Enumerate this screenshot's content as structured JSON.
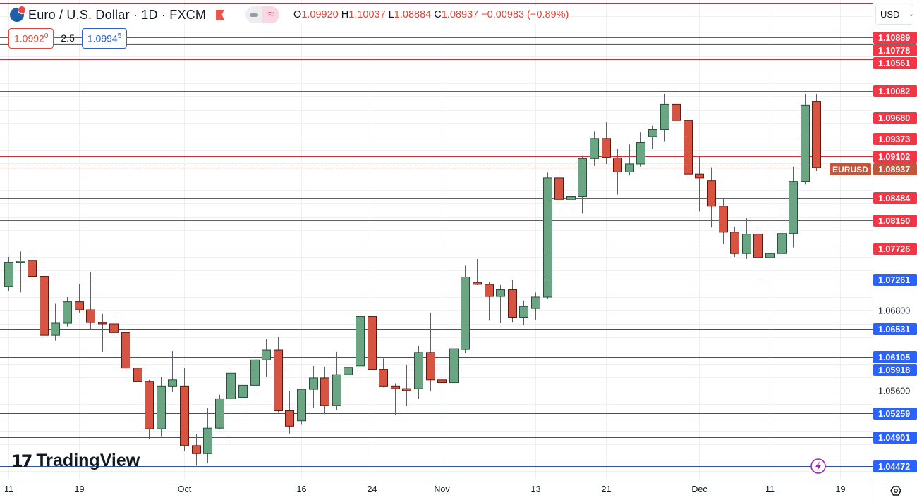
{
  "header": {
    "title": "Euro / U.S. Dollar · 1D · FXCM",
    "ohlc": {
      "o_label": "O",
      "o": "1.09920",
      "h_label": "H",
      "h": "1.10037",
      "l_label": "L",
      "l": "1.08884",
      "c_label": "C",
      "c": "1.08937",
      "change": "−0.00983 (−0.89%)"
    },
    "sell_price_main": "1.0992",
    "sell_price_sup": "0",
    "spread": "2.5",
    "buy_price_main": "1.0994",
    "buy_price_sup": "5"
  },
  "currency_select": "USD",
  "logo_text": "TradingView",
  "symbol_tag": "EURUSD",
  "colors": {
    "up": "#6ba583",
    "up_border": "#225437",
    "down": "#d75442",
    "down_border": "#5b1a13",
    "resistance": "#c8333b",
    "support": "#2b5797",
    "resistance_label": "#f23645",
    "support_label": "#2962ff",
    "last_price": "#c0573c",
    "alert_icon": "#9c27b0"
  },
  "icons": {
    "symbol": "euro-us-flag-icon",
    "flag": "flag-icon",
    "alert": "lightning-icon",
    "settings": "gear-icon"
  },
  "chart_data": {
    "type": "candlestick",
    "title": "Euro / U.S. Dollar · 1D · FXCM",
    "ylim": [
      1.0435,
      1.1145
    ],
    "grid": true,
    "y_ticks": [
      "1.04400",
      "1.04800",
      "1.05200",
      "1.05600",
      "1.06000",
      "1.06400",
      "1.06800",
      "1.07200",
      "1.07600",
      "1.08000",
      "1.08400",
      "1.08800",
      "1.09200",
      "1.09500",
      "1.10000",
      "1.10400",
      "1.10800"
    ],
    "x_ticks": [
      {
        "label": "11",
        "date": "Sep 11"
      },
      {
        "label": "19",
        "date": "Sep 19"
      },
      {
        "label": "Oct",
        "date": "Oct 2"
      },
      {
        "label": "16",
        "date": "Oct 16"
      },
      {
        "label": "24",
        "date": "Oct 24"
      },
      {
        "label": "Nov",
        "date": "Nov 1"
      },
      {
        "label": "13",
        "date": "Nov 13"
      },
      {
        "label": "21",
        "date": "Nov 21"
      },
      {
        "label": "Dec",
        "date": "Dec 1"
      },
      {
        "label": "11",
        "date": "Dec 11"
      },
      {
        "label": "19",
        "date": "Dec 19"
      }
    ],
    "levels": [
      {
        "price": 1.114,
        "label": "",
        "kind": "resistance"
      },
      {
        "price": 1.10889,
        "label": "1.10889",
        "kind": "resistance"
      },
      {
        "price": 1.10778,
        "label": "1.10778",
        "kind": "resistance"
      },
      {
        "price": 1.10561,
        "label": "1.10561",
        "kind": "resistance"
      },
      {
        "price": 1.10082,
        "label": "1.10082",
        "kind": "resistance"
      },
      {
        "price": 1.0968,
        "label": "1.09680",
        "kind": "resistance"
      },
      {
        "price": 1.09373,
        "label": "1.09373",
        "kind": "resistance"
      },
      {
        "price": 1.09102,
        "label": "1.09102",
        "kind": "resistance"
      },
      {
        "price": 1.08484,
        "label": "1.08484",
        "kind": "resistance"
      },
      {
        "price": 1.0815,
        "label": "1.08150",
        "kind": "resistance"
      },
      {
        "price": 1.07726,
        "label": "1.07726",
        "kind": "resistance"
      },
      {
        "price": 1.07261,
        "label": "1.07261",
        "kind": "support"
      },
      {
        "price": 1.06531,
        "label": "1.06531",
        "kind": "support"
      },
      {
        "price": 1.06105,
        "label": "1.06105",
        "kind": "support"
      },
      {
        "price": 1.05918,
        "label": "1.05918",
        "kind": "support"
      },
      {
        "price": 1.05259,
        "label": "1.05259",
        "kind": "support"
      },
      {
        "price": 1.04901,
        "label": "1.04901",
        "kind": "support"
      },
      {
        "price": 1.04472,
        "label": "1.04472",
        "kind": "support"
      }
    ],
    "last_price": {
      "price": 1.08937,
      "label": "1.08937"
    },
    "candles": [
      {
        "date": "Sep 11",
        "o": 1.0716,
        "h": 1.076,
        "l": 1.0709,
        "c": 1.0752
      },
      {
        "date": "Sep 12",
        "o": 1.0752,
        "h": 1.0768,
        "l": 1.0707,
        "c": 1.0754
      },
      {
        "date": "Sep 13",
        "o": 1.0755,
        "h": 1.0766,
        "l": 1.0713,
        "c": 1.0731
      },
      {
        "date": "Sep 14",
        "o": 1.0731,
        "h": 1.0754,
        "l": 1.0634,
        "c": 1.0643
      },
      {
        "date": "Sep 15",
        "o": 1.0643,
        "h": 1.069,
        "l": 1.0635,
        "c": 1.0661
      },
      {
        "date": "Sep 18",
        "o": 1.0661,
        "h": 1.07,
        "l": 1.0656,
        "c": 1.0693
      },
      {
        "date": "Sep 19",
        "o": 1.0693,
        "h": 1.0719,
        "l": 1.0677,
        "c": 1.0681
      },
      {
        "date": "Sep 20",
        "o": 1.0681,
        "h": 1.0738,
        "l": 1.0652,
        "c": 1.0662
      },
      {
        "date": "Sep 21",
        "o": 1.0662,
        "h": 1.0675,
        "l": 1.0618,
        "c": 1.066
      },
      {
        "date": "Sep 22",
        "o": 1.066,
        "h": 1.0674,
        "l": 1.0617,
        "c": 1.0647
      },
      {
        "date": "Sep 25",
        "o": 1.0647,
        "h": 1.0657,
        "l": 1.0577,
        "c": 1.0594
      },
      {
        "date": "Sep 26",
        "o": 1.0594,
        "h": 1.0611,
        "l": 1.0563,
        "c": 1.0574
      },
      {
        "date": "Sep 27",
        "o": 1.0574,
        "h": 1.0576,
        "l": 1.0488,
        "c": 1.0503
      },
      {
        "date": "Sep 28",
        "o": 1.0503,
        "h": 1.058,
        "l": 1.0492,
        "c": 1.0567
      },
      {
        "date": "Sep 29",
        "o": 1.0567,
        "h": 1.0619,
        "l": 1.0558,
        "c": 1.0576
      },
      {
        "date": "Oct 2",
        "o": 1.0567,
        "h": 1.0594,
        "l": 1.047,
        "c": 1.0478
      },
      {
        "date": "Oct 3",
        "o": 1.0478,
        "h": 1.0495,
        "l": 1.0448,
        "c": 1.0466
      },
      {
        "date": "Oct 4",
        "o": 1.0466,
        "h": 1.0534,
        "l": 1.0452,
        "c": 1.0504
      },
      {
        "date": "Oct 5",
        "o": 1.0504,
        "h": 1.0554,
        "l": 1.0502,
        "c": 1.0548
      },
      {
        "date": "Oct 6",
        "o": 1.0548,
        "h": 1.0602,
        "l": 1.0483,
        "c": 1.0586
      },
      {
        "date": "Oct 9",
        "o": 1.055,
        "h": 1.0576,
        "l": 1.0521,
        "c": 1.0568
      },
      {
        "date": "Oct 10",
        "o": 1.0568,
        "h": 1.0621,
        "l": 1.0557,
        "c": 1.0606
      },
      {
        "date": "Oct 11",
        "o": 1.0606,
        "h": 1.0637,
        "l": 1.0581,
        "c": 1.0621
      },
      {
        "date": "Oct 12",
        "o": 1.0621,
        "h": 1.0641,
        "l": 1.0528,
        "c": 1.053
      },
      {
        "date": "Oct 13",
        "o": 1.053,
        "h": 1.056,
        "l": 1.0496,
        "c": 1.0507
      },
      {
        "date": "Oct 16",
        "o": 1.0515,
        "h": 1.0563,
        "l": 1.051,
        "c": 1.0562
      },
      {
        "date": "Oct 17",
        "o": 1.0562,
        "h": 1.0597,
        "l": 1.0534,
        "c": 1.0579
      },
      {
        "date": "Oct 18",
        "o": 1.0579,
        "h": 1.0596,
        "l": 1.0525,
        "c": 1.0538
      },
      {
        "date": "Oct 19",
        "o": 1.0538,
        "h": 1.0618,
        "l": 1.0531,
        "c": 1.0584
      },
      {
        "date": "Oct 20",
        "o": 1.0584,
        "h": 1.0605,
        "l": 1.0566,
        "c": 1.0595
      },
      {
        "date": "Oct 23",
        "o": 1.0597,
        "h": 1.068,
        "l": 1.0573,
        "c": 1.0671
      },
      {
        "date": "Oct 24",
        "o": 1.0671,
        "h": 1.0696,
        "l": 1.0584,
        "c": 1.0592
      },
      {
        "date": "Oct 25",
        "o": 1.0592,
        "h": 1.0608,
        "l": 1.0565,
        "c": 1.0567
      },
      {
        "date": "Oct 26",
        "o": 1.0567,
        "h": 1.0571,
        "l": 1.0523,
        "c": 1.0563
      },
      {
        "date": "Oct 27",
        "o": 1.0563,
        "h": 1.0599,
        "l": 1.0537,
        "c": 1.056
      },
      {
        "date": "Oct 30",
        "o": 1.0563,
        "h": 1.0627,
        "l": 1.0548,
        "c": 1.0617
      },
      {
        "date": "Oct 31",
        "o": 1.0617,
        "h": 1.0677,
        "l": 1.0559,
        "c": 1.0576
      },
      {
        "date": "Nov 1",
        "o": 1.0576,
        "h": 1.0582,
        "l": 1.0518,
        "c": 1.0572
      },
      {
        "date": "Nov 2",
        "o": 1.0572,
        "h": 1.067,
        "l": 1.0567,
        "c": 1.0623
      },
      {
        "date": "Nov 3",
        "o": 1.0622,
        "h": 1.0747,
        "l": 1.0616,
        "c": 1.073
      },
      {
        "date": "Nov 6",
        "o": 1.0722,
        "h": 1.0757,
        "l": 1.0718,
        "c": 1.0719
      },
      {
        "date": "Nov 7",
        "o": 1.0719,
        "h": 1.0723,
        "l": 1.0665,
        "c": 1.0701
      },
      {
        "date": "Nov 8",
        "o": 1.0701,
        "h": 1.0718,
        "l": 1.0661,
        "c": 1.0711
      },
      {
        "date": "Nov 9",
        "o": 1.0711,
        "h": 1.0726,
        "l": 1.0662,
        "c": 1.067
      },
      {
        "date": "Nov 10",
        "o": 1.067,
        "h": 1.0695,
        "l": 1.0658,
        "c": 1.0686
      },
      {
        "date": "Nov 13",
        "o": 1.0683,
        "h": 1.0707,
        "l": 1.0666,
        "c": 1.07
      },
      {
        "date": "Nov 14",
        "o": 1.07,
        "h": 1.0886,
        "l": 1.0697,
        "c": 1.0878
      },
      {
        "date": "Nov 15",
        "o": 1.0878,
        "h": 1.0884,
        "l": 1.0832,
        "c": 1.0846
      },
      {
        "date": "Nov 16",
        "o": 1.0846,
        "h": 1.0894,
        "l": 1.0829,
        "c": 1.085
      },
      {
        "date": "Nov 17",
        "o": 1.085,
        "h": 1.0912,
        "l": 1.0825,
        "c": 1.0907
      },
      {
        "date": "Nov 20",
        "o": 1.0907,
        "h": 1.0948,
        "l": 1.0896,
        "c": 1.0937
      },
      {
        "date": "Nov 21",
        "o": 1.0937,
        "h": 1.0962,
        "l": 1.0899,
        "c": 1.0909
      },
      {
        "date": "Nov 22",
        "o": 1.0908,
        "h": 1.0921,
        "l": 1.0853,
        "c": 1.0887
      },
      {
        "date": "Nov 23",
        "o": 1.0887,
        "h": 1.0928,
        "l": 1.0882,
        "c": 1.0899
      },
      {
        "date": "Nov 24",
        "o": 1.0899,
        "h": 1.0946,
        "l": 1.0895,
        "c": 1.0931
      },
      {
        "date": "Nov 27",
        "o": 1.094,
        "h": 1.0956,
        "l": 1.0922,
        "c": 1.0951
      },
      {
        "date": "Nov 28",
        "o": 1.0951,
        "h": 1.1004,
        "l": 1.0933,
        "c": 1.0988
      },
      {
        "date": "Nov 29",
        "o": 1.0988,
        "h": 1.1012,
        "l": 1.0957,
        "c": 1.0964
      },
      {
        "date": "Nov 30",
        "o": 1.0964,
        "h": 1.098,
        "l": 1.0878,
        "c": 1.0884
      },
      {
        "date": "Dec 1",
        "o": 1.0884,
        "h": 1.0911,
        "l": 1.0828,
        "c": 1.0878
      },
      {
        "date": "Dec 4",
        "o": 1.0874,
        "h": 1.0894,
        "l": 1.0804,
        "c": 1.0836
      },
      {
        "date": "Dec 5",
        "o": 1.0836,
        "h": 1.0847,
        "l": 1.0779,
        "c": 1.0797
      },
      {
        "date": "Dec 6",
        "o": 1.0797,
        "h": 1.0805,
        "l": 1.076,
        "c": 1.0765
      },
      {
        "date": "Dec 7",
        "o": 1.0765,
        "h": 1.0818,
        "l": 1.0757,
        "c": 1.0794
      },
      {
        "date": "Dec 8",
        "o": 1.0794,
        "h": 1.0801,
        "l": 1.0726,
        "c": 1.0759
      },
      {
        "date": "Dec 11",
        "o": 1.0759,
        "h": 1.078,
        "l": 1.0743,
        "c": 1.0765
      },
      {
        "date": "Dec 12",
        "o": 1.0765,
        "h": 1.0827,
        "l": 1.0759,
        "c": 1.0795
      },
      {
        "date": "Dec 13",
        "o": 1.0795,
        "h": 1.0895,
        "l": 1.0774,
        "c": 1.0873
      },
      {
        "date": "Dec 14",
        "o": 1.0873,
        "h": 1.1004,
        "l": 1.0868,
        "c": 1.0987
      },
      {
        "date": "Dec 15",
        "o": 1.0992,
        "h": 1.10037,
        "l": 1.08884,
        "c": 1.08937
      }
    ]
  }
}
